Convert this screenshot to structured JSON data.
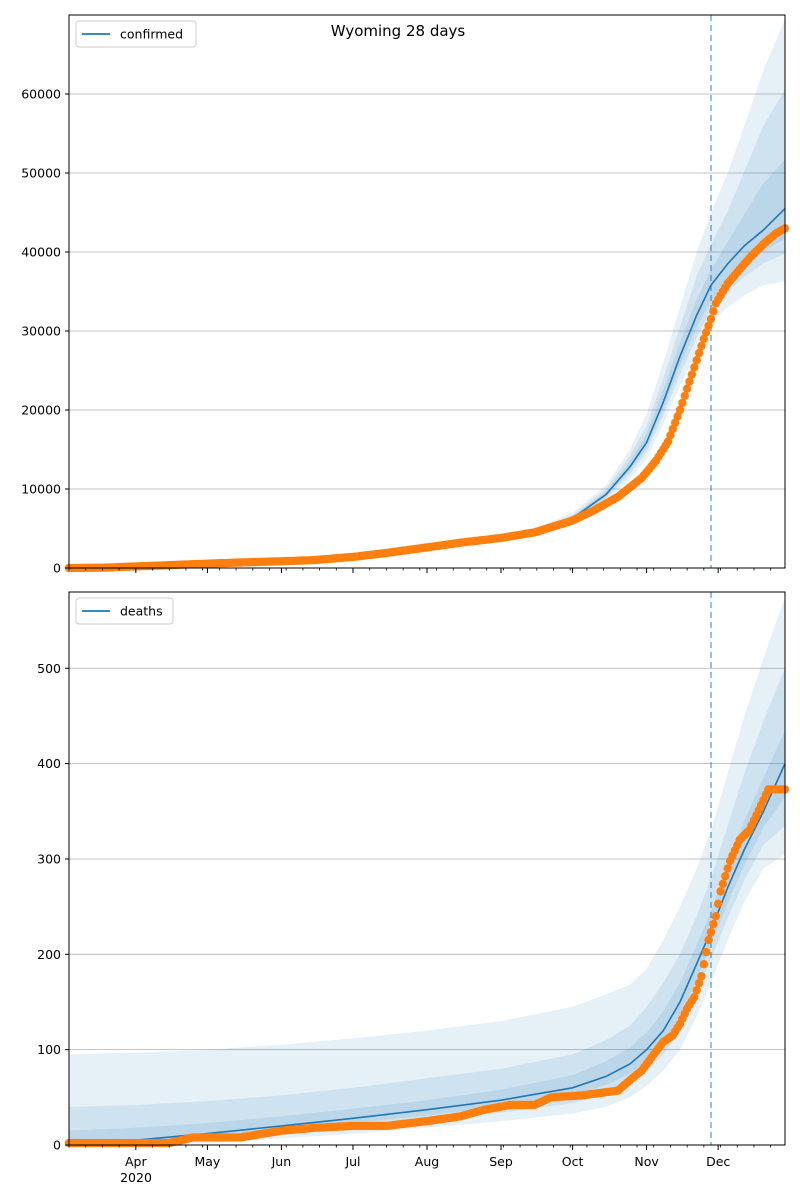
{
  "title": "Wyoming 28 days",
  "colors": {
    "model_line": "#1f77b4",
    "band": "#1f77b4",
    "observed": "#ff7f0e",
    "grid": "#b0b0b0",
    "vline": "#1f77b4"
  },
  "x_axis": {
    "month_ticks": [
      {
        "date": "2020-04-01",
        "label": "Apr"
      },
      {
        "date": "2020-05-01",
        "label": "May"
      },
      {
        "date": "2020-06-01",
        "label": "Jun"
      },
      {
        "date": "2020-07-01",
        "label": "Jul"
      },
      {
        "date": "2020-08-01",
        "label": "Aug"
      },
      {
        "date": "2020-09-01",
        "label": "Sep"
      },
      {
        "date": "2020-10-01",
        "label": "Oct"
      },
      {
        "date": "2020-11-01",
        "label": "Nov"
      },
      {
        "date": "2020-12-01",
        "label": "Dec"
      }
    ],
    "year_label": "2020",
    "range": [
      "2020-03-04",
      "2020-12-29"
    ],
    "forecast_start": "2020-11-28"
  },
  "chart_data": [
    {
      "type": "line",
      "name": "confirmed",
      "legend": "confirmed",
      "legend_position": "top-left",
      "grid": true,
      "ylim": [
        0,
        70000
      ],
      "yticks": [
        0,
        10000,
        20000,
        30000,
        40000,
        50000,
        60000
      ],
      "model": {
        "x": [
          "2020-03-04",
          "2020-04-01",
          "2020-05-01",
          "2020-06-01",
          "2020-07-01",
          "2020-08-01",
          "2020-09-01",
          "2020-09-15",
          "2020-10-01",
          "2020-10-15",
          "2020-10-25",
          "2020-11-01",
          "2020-11-08",
          "2020-11-15",
          "2020-11-22",
          "2020-11-28",
          "2020-12-05",
          "2020-12-12",
          "2020-12-20",
          "2020-12-29"
        ],
        "y": [
          100,
          250,
          550,
          1000,
          1550,
          2800,
          3900,
          4500,
          6300,
          9300,
          12800,
          15900,
          21000,
          26800,
          32000,
          35800,
          38500,
          40800,
          42800,
          45500
        ]
      },
      "bands": [
        {
          "lower": [
            60,
            150,
            400,
            800,
            1350,
            2500,
            3600,
            4100,
            5800,
            8400,
            11300,
            13800,
            18200,
            23000,
            27500,
            31000,
            33000,
            34500,
            35800,
            36300
          ],
          "upper": [
            180,
            400,
            800,
            1300,
            1900,
            3200,
            4300,
            5000,
            7000,
            10500,
            15000,
            19500,
            26000,
            33000,
            40000,
            45000,
            50000,
            56000,
            63000,
            69500
          ]
        },
        {
          "lower": [
            75,
            190,
            460,
            880,
            1430,
            2620,
            3720,
            4280,
            6020,
            8780,
            11900,
            14700,
            19300,
            24500,
            29200,
            32700,
            34900,
            36900,
            38600,
            39800
          ],
          "upper": [
            150,
            340,
            700,
            1180,
            1750,
            3050,
            4150,
            4800,
            6700,
            10000,
            14200,
            18000,
            24000,
            30500,
            37000,
            41000,
            45200,
            50200,
            56000,
            60600
          ]
        },
        {
          "lower": [
            88,
            220,
            505,
            940,
            1490,
            2710,
            3810,
            4390,
            6160,
            9040,
            12350,
            15300,
            20150,
            25600,
            30500,
            33800,
            36300,
            38300,
            40100,
            41700
          ],
          "upper": [
            130,
            300,
            620,
            1100,
            1650,
            2950,
            4030,
            4650,
            6500,
            9650,
            13500,
            17000,
            22500,
            28500,
            34000,
            37800,
            41300,
            44800,
            48700,
            51700
          ]
        }
      ],
      "observed": {
        "x": [
          "2020-03-04",
          "2020-03-20",
          "2020-04-01",
          "2020-04-15",
          "2020-05-01",
          "2020-05-15",
          "2020-06-01",
          "2020-06-15",
          "2020-07-01",
          "2020-07-15",
          "2020-08-01",
          "2020-08-15",
          "2020-09-01",
          "2020-09-15",
          "2020-10-01",
          "2020-10-10",
          "2020-10-20",
          "2020-10-30",
          "2020-11-05",
          "2020-11-10",
          "2020-11-15",
          "2020-11-20",
          "2020-11-25",
          "2020-11-28",
          "2020-11-30",
          "2020-12-05",
          "2020-12-10",
          "2020-12-15",
          "2020-12-20",
          "2020-12-25",
          "2020-12-29"
        ],
        "y": [
          0,
          50,
          200,
          350,
          550,
          700,
          850,
          1000,
          1400,
          1900,
          2600,
          3200,
          3800,
          4500,
          6000,
          7300,
          9000,
          11400,
          13600,
          16000,
          20000,
          24500,
          29000,
          31500,
          33500,
          36000,
          37800,
          39500,
          41000,
          42300,
          43000
        ]
      }
    },
    {
      "type": "line",
      "name": "deaths",
      "legend": "deaths",
      "legend_position": "top-left",
      "grid": true,
      "ylim": [
        0,
        580
      ],
      "yticks": [
        0,
        100,
        200,
        300,
        400,
        500
      ],
      "model": {
        "x": [
          "2020-03-04",
          "2020-04-01",
          "2020-05-01",
          "2020-06-01",
          "2020-07-01",
          "2020-08-01",
          "2020-09-01",
          "2020-10-01",
          "2020-10-15",
          "2020-10-25",
          "2020-11-01",
          "2020-11-08",
          "2020-11-15",
          "2020-11-22",
          "2020-11-28",
          "2020-12-05",
          "2020-12-12",
          "2020-12-20",
          "2020-12-29"
        ],
        "y": [
          2,
          5,
          12,
          20,
          28,
          37,
          47,
          60,
          72,
          85,
          100,
          120,
          150,
          190,
          225,
          270,
          310,
          350,
          400
        ]
      },
      "bands": [
        {
          "lower": [
            0,
            0,
            2,
            7,
            12,
            18,
            25,
            33,
            40,
            50,
            62,
            78,
            100,
            135,
            170,
            215,
            255,
            290,
            305
          ],
          "upper": [
            95,
            97,
            100,
            105,
            112,
            120,
            130,
            145,
            158,
            168,
            185,
            215,
            250,
            290,
            330,
            390,
            450,
            510,
            575
          ]
        },
        {
          "lower": [
            0,
            1,
            5,
            11,
            18,
            26,
            34,
            44,
            54,
            65,
            78,
            95,
            120,
            158,
            195,
            238,
            278,
            315,
            335
          ],
          "upper": [
            40,
            42,
            46,
            52,
            60,
            70,
            80,
            95,
            110,
            125,
            145,
            170,
            200,
            240,
            280,
            335,
            390,
            445,
            500
          ]
        },
        {
          "lower": [
            1,
            3,
            8,
            15,
            23,
            31,
            40,
            52,
            63,
            75,
            88,
            107,
            135,
            173,
            210,
            254,
            294,
            333,
            365
          ],
          "upper": [
            15,
            18,
            23,
            30,
            38,
            47,
            58,
            73,
            88,
            102,
            118,
            140,
            170,
            210,
            245,
            295,
            340,
            385,
            435
          ]
        }
      ],
      "observed": {
        "x": [
          "2020-03-04",
          "2020-04-15",
          "2020-04-25",
          "2020-05-15",
          "2020-06-01",
          "2020-06-15",
          "2020-07-01",
          "2020-07-15",
          "2020-08-01",
          "2020-08-15",
          "2020-08-25",
          "2020-09-05",
          "2020-09-15",
          "2020-09-22",
          "2020-10-05",
          "2020-10-20",
          "2020-10-25",
          "2020-10-30",
          "2020-11-04",
          "2020-11-08",
          "2020-11-12",
          "2020-11-15",
          "2020-11-18",
          "2020-11-21",
          "2020-11-24",
          "2020-11-27",
          "2020-11-30",
          "2020-12-02",
          "2020-12-06",
          "2020-12-10",
          "2020-12-14",
          "2020-12-18",
          "2020-12-22",
          "2020-12-25",
          "2020-12-29"
        ],
        "y": [
          2,
          2,
          8,
          8,
          15,
          18,
          20,
          20,
          25,
          30,
          37,
          42,
          42,
          50,
          52,
          57,
          68,
          78,
          95,
          108,
          115,
          127,
          143,
          155,
          177,
          215,
          240,
          266,
          298,
          320,
          330,
          351,
          373,
          373,
          373
        ]
      }
    }
  ]
}
